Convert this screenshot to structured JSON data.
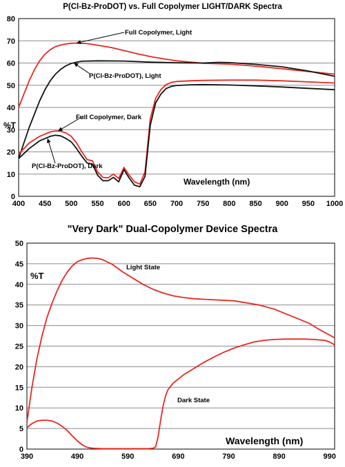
{
  "chart_data": [
    {
      "type": "line",
      "title": "P(Cl-Bz-ProDOT) vs. Full Copolymer LIGHT/DARK Spectra",
      "xlabel": "Wavelength (nm)",
      "ylabel": "%T",
      "xlim": [
        400,
        1000
      ],
      "ylim": [
        0,
        80
      ],
      "xticks": [
        400,
        450,
        500,
        550,
        600,
        650,
        700,
        750,
        800,
        850,
        900,
        950,
        1000
      ],
      "yticks": [
        0,
        10,
        20,
        30,
        40,
        50,
        60,
        70,
        80
      ],
      "grid": "horizontal",
      "series": [
        {
          "name": "Full Copolymer, Light",
          "color": "#e8261f",
          "x": [
            400,
            410,
            420,
            430,
            440,
            450,
            460,
            470,
            480,
            490,
            500,
            510,
            520,
            530,
            540,
            550,
            575,
            600,
            625,
            650,
            675,
            700,
            750,
            800,
            850,
            900,
            950,
            1000
          ],
          "y": [
            40,
            46,
            52,
            57,
            61,
            64,
            66,
            67.4,
            68.1,
            68.6,
            68.9,
            69,
            68.9,
            68.7,
            68.4,
            68,
            67,
            65.6,
            64.2,
            62.9,
            61.9,
            61,
            59.9,
            59.5,
            58.6,
            57.4,
            56.2,
            55
          ]
        },
        {
          "name": "P(Cl-Bz-ProDOT), Light",
          "color": "#111111",
          "x": [
            400,
            410,
            420,
            430,
            440,
            450,
            460,
            470,
            480,
            490,
            500,
            510,
            520,
            550,
            600,
            650,
            700,
            750,
            780,
            800,
            850,
            900,
            950,
            1000
          ],
          "y": [
            17,
            24,
            31,
            37,
            43,
            48,
            52,
            55,
            57.2,
            58.8,
            59.8,
            60.4,
            60.8,
            61,
            60.9,
            60.4,
            60.1,
            60,
            60.3,
            60.2,
            59.4,
            58.3,
            56.4,
            54
          ]
        },
        {
          "name": "Full Copolymer, Dark",
          "color": "#e8261f",
          "x": [
            400,
            420,
            440,
            460,
            470,
            480,
            490,
            500,
            510,
            520,
            530,
            540,
            550,
            560,
            570,
            580,
            590,
            600,
            610,
            620,
            630,
            640,
            650,
            660,
            670,
            680,
            690,
            700,
            725,
            750,
            800,
            850,
            900,
            950,
            1000
          ],
          "y": [
            19,
            24,
            27,
            29,
            29.4,
            29.3,
            28.5,
            27,
            24,
            20,
            16.5,
            16,
            11,
            8.5,
            8.3,
            10,
            8,
            13,
            9.5,
            6.5,
            5.5,
            11,
            35,
            44,
            48,
            50.3,
            51.3,
            51.7,
            52,
            52.2,
            52.3,
            52.3,
            52,
            51.5,
            51
          ]
        },
        {
          "name": "P(Cl-Bz-ProDOT), Dark",
          "color": "#111111",
          "x": [
            400,
            420,
            440,
            460,
            470,
            480,
            490,
            500,
            510,
            520,
            530,
            540,
            550,
            560,
            570,
            580,
            590,
            600,
            610,
            620,
            630,
            640,
            650,
            660,
            670,
            680,
            690,
            700,
            725,
            750,
            800,
            850,
            900,
            950,
            1000
          ],
          "y": [
            17,
            21.5,
            25,
            27,
            27.5,
            27.2,
            26,
            24.5,
            21.5,
            18,
            15,
            14.5,
            9.5,
            7,
            7,
            8.5,
            6.5,
            12,
            8.2,
            5,
            4.3,
            9,
            32,
            42,
            46,
            48.5,
            49.5,
            49.9,
            50.2,
            50.3,
            50.1,
            49.7,
            49.2,
            48.6,
            48
          ]
        }
      ],
      "annotations": [
        {
          "text": "Full Copolymer, Light",
          "target": [
            510,
            69
          ]
        },
        {
          "text": "P(Cl-Bz-ProDOT), Light",
          "target": [
            505,
            60
          ]
        },
        {
          "text": "Full Copolymer, Dark",
          "target": [
            475,
            29.4
          ]
        },
        {
          "text": "P(Cl-Bz-ProDOT), Dark",
          "target": [
            455,
            26
          ]
        }
      ]
    },
    {
      "type": "line",
      "title": "\"Very Dark\" Dual-Copolymer Device Spectra",
      "xlabel": "Wavelength (nm)",
      "ylabel": "%T",
      "xlim": [
        390,
        1000
      ],
      "ylim": [
        0,
        50
      ],
      "xticks": [
        390,
        490,
        590,
        690,
        790,
        890,
        990
      ],
      "yticks": [
        0,
        5,
        10,
        15,
        20,
        25,
        30,
        35,
        40,
        45,
        50
      ],
      "grid": "horizontal",
      "series": [
        {
          "name": "Light State",
          "color": "#e8261f",
          "x": [
            390,
            400,
            410,
            420,
            430,
            440,
            450,
            460,
            470,
            480,
            490,
            500,
            510,
            520,
            530,
            540,
            560,
            580,
            600,
            620,
            640,
            660,
            680,
            700,
            720,
            750,
            800,
            850,
            880,
            900,
            920,
            950,
            970,
            1000
          ],
          "y": [
            6.5,
            15,
            22,
            27.5,
            32,
            35.5,
            38.5,
            41,
            43,
            44.5,
            45.5,
            46,
            46.3,
            46.4,
            46.3,
            46,
            44.8,
            43,
            41.5,
            40,
            38.8,
            37.9,
            37.2,
            36.8,
            36.5,
            36.3,
            36,
            35,
            34,
            33,
            32,
            30.5,
            29,
            27
          ]
        },
        {
          "name": "Dark State",
          "color": "#e8261f",
          "x": [
            390,
            400,
            410,
            420,
            430,
            440,
            450,
            460,
            470,
            480,
            490,
            500,
            510,
            520,
            540,
            560,
            580,
            600,
            620,
            630,
            640,
            645,
            650,
            655,
            660,
            665,
            670,
            680,
            690,
            700,
            720,
            740,
            760,
            780,
            800,
            820,
            840,
            860,
            880,
            900,
            920,
            940,
            960,
            980,
            990,
            1000
          ],
          "y": [
            5.2,
            6.2,
            6.8,
            7.0,
            7.0,
            6.8,
            6.3,
            5.5,
            4.5,
            3.2,
            2.0,
            1.0,
            0.4,
            0.2,
            0.1,
            0.1,
            0.1,
            0.1,
            0.1,
            0.1,
            0.2,
            0.5,
            3,
            7,
            10.5,
            13,
            14.5,
            16,
            17,
            18,
            19.5,
            21,
            22.3,
            23.5,
            24.5,
            25.3,
            26,
            26.4,
            26.6,
            26.7,
            26.7,
            26.7,
            26.6,
            26.4,
            26.0,
            25.3
          ]
        }
      ],
      "annotations": [
        {
          "text": "Light State"
        },
        {
          "text": "Dark State"
        }
      ]
    }
  ]
}
